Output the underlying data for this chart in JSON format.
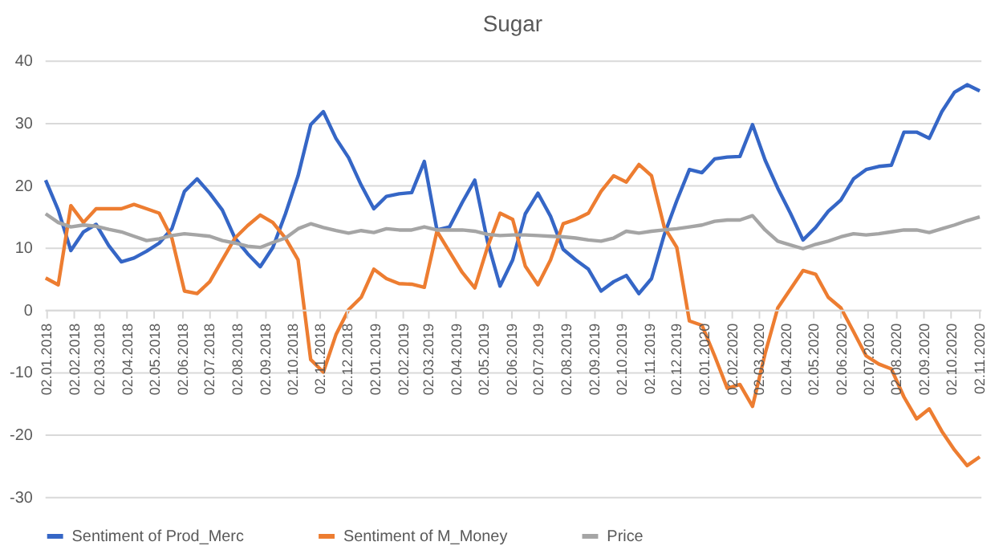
{
  "chart_data": {
    "type": "line",
    "title": "Sugar",
    "x": [
      "2018-01-02",
      "2018-01-16",
      "2018-01-30",
      "2018-02-13",
      "2018-02-27",
      "2018-03-13",
      "2018-03-27",
      "2018-04-10",
      "2018-04-24",
      "2018-05-08",
      "2018-05-22",
      "2018-06-05",
      "2018-06-19",
      "2018-07-03",
      "2018-07-17",
      "2018-07-31",
      "2018-08-14",
      "2018-08-28",
      "2018-09-11",
      "2018-09-25",
      "2018-10-09",
      "2018-10-23",
      "2018-11-06",
      "2018-11-20",
      "2018-12-04",
      "2018-12-18",
      "2019-01-01",
      "2019-01-15",
      "2019-01-29",
      "2019-02-12",
      "2019-02-26",
      "2019-03-12",
      "2019-03-26",
      "2019-04-09",
      "2019-04-23",
      "2019-05-07",
      "2019-05-21",
      "2019-06-04",
      "2019-06-18",
      "2019-07-02",
      "2019-07-16",
      "2019-07-30",
      "2019-08-13",
      "2019-08-27",
      "2019-09-10",
      "2019-09-24",
      "2019-10-08",
      "2019-10-22",
      "2019-11-05",
      "2019-11-19",
      "2019-12-03",
      "2019-12-17",
      "2019-12-31",
      "2020-01-14",
      "2020-01-28",
      "2020-02-11",
      "2020-02-25",
      "2020-03-10",
      "2020-03-24",
      "2020-04-07",
      "2020-04-21",
      "2020-05-05",
      "2020-05-19",
      "2020-06-02",
      "2020-06-16",
      "2020-06-30",
      "2020-07-14",
      "2020-07-28",
      "2020-08-11",
      "2020-08-25",
      "2020-09-08",
      "2020-09-22",
      "2020-10-06",
      "2020-10-20",
      "2020-11-03"
    ],
    "series": [
      {
        "name": "Sentiment of Prod_Merc",
        "color": "#3566c6",
        "values": [
          20.8,
          16,
          9.5,
          12.5,
          13.7,
          10.3,
          7.7,
          8.3,
          9.4,
          10.7,
          13,
          19,
          21,
          18.7,
          16,
          11.5,
          9,
          6.9,
          10,
          15.4,
          21.5,
          29.7,
          31.8,
          27.5,
          24.4,
          20,
          16.2,
          18.2,
          18.6,
          18.8,
          23.8,
          12.8,
          13.3,
          17.2,
          20.8,
          11,
          3.8,
          8,
          15.4,
          18.7,
          15,
          9.7,
          8,
          6.5,
          3,
          4.5,
          5.5,
          2.6,
          5,
          12,
          17.5,
          22.5,
          22,
          24.2,
          24.5,
          24.6,
          29.7,
          24,
          19.5,
          15.5,
          11.2,
          13.2,
          15.8,
          17.6,
          21,
          22.5,
          23,
          23.2,
          28.5,
          28.5,
          27.5,
          31.8,
          34.9,
          36.1,
          35.1
        ]
      },
      {
        "name": "Sentiment of M_Money",
        "color": "#ed7d31",
        "values": [
          5.1,
          4,
          16.7,
          14,
          16.2,
          16.2,
          16.2,
          16.9,
          16.2,
          15.5,
          11.5,
          3,
          2.6,
          4.5,
          8,
          11.5,
          13.5,
          15.2,
          14,
          11.5,
          8,
          -8,
          -10,
          -4,
          0,
          2,
          6.5,
          5,
          4.2,
          4.1,
          3.6,
          12.6,
          9.3,
          6,
          3.5,
          10,
          15.5,
          14.5,
          7,
          4,
          8,
          13.8,
          14.5,
          15.5,
          19,
          21.5,
          20.5,
          23.3,
          21.5,
          13.3,
          10,
          -1.8,
          -2.5,
          -7.4,
          -12.6,
          -12,
          -15.5,
          -7,
          0.3,
          3.3,
          6.3,
          5.7,
          2,
          0.3,
          -3.5,
          -7.4,
          -8.7,
          -9.5,
          -14,
          -17.5,
          -15.9,
          -19.5,
          -22.5,
          -25,
          -23.6
        ]
      },
      {
        "name": "Price",
        "color": "#a5a5a5",
        "values": [
          15.4,
          14,
          13.3,
          13.6,
          13.4,
          12.9,
          12.5,
          11.8,
          11.1,
          11.4,
          11.9,
          12.2,
          12,
          11.8,
          11.1,
          10.7,
          10.2,
          10,
          10.8,
          11.5,
          13,
          13.8,
          13.2,
          12.7,
          12.3,
          12.7,
          12.4,
          13,
          12.8,
          12.8,
          13.3,
          12.8,
          12.8,
          12.8,
          12.6,
          12.1,
          11.9,
          12,
          12,
          11.9,
          11.8,
          11.7,
          11.5,
          11.2,
          11,
          11.5,
          12.6,
          12.3,
          12.6,
          12.8,
          13,
          13.3,
          13.6,
          14.2,
          14.4,
          14.4,
          15.1,
          12.8,
          11,
          10.4,
          9.8,
          10.5,
          11,
          11.7,
          12.2,
          12,
          12.2,
          12.5,
          12.8,
          12.8,
          12.4,
          13,
          13.6,
          14.3,
          14.9
        ]
      }
    ],
    "xlim": [
      "2018-01-01",
      "2020-11-04"
    ],
    "xticks": [
      {
        "value": "2018-01-02",
        "label": "02.01.2018"
      },
      {
        "value": "2018-02-02",
        "label": "02.02.2018"
      },
      {
        "value": "2018-03-02",
        "label": "02.03.2018"
      },
      {
        "value": "2018-04-02",
        "label": "02.04.2018"
      },
      {
        "value": "2018-05-02",
        "label": "02.05.2018"
      },
      {
        "value": "2018-06-02",
        "label": "02.06.2018"
      },
      {
        "value": "2018-07-02",
        "label": "02.07.2018"
      },
      {
        "value": "2018-08-02",
        "label": "02.08.2018"
      },
      {
        "value": "2018-09-02",
        "label": "02.09.2018"
      },
      {
        "value": "2018-10-02",
        "label": "02.10.2018"
      },
      {
        "value": "2018-11-02",
        "label": "02.11.2018"
      },
      {
        "value": "2018-12-02",
        "label": "02.12.2018"
      },
      {
        "value": "2019-01-02",
        "label": "02.01.2019"
      },
      {
        "value": "2019-02-02",
        "label": "02.02.2019"
      },
      {
        "value": "2019-03-02",
        "label": "02.03.2019"
      },
      {
        "value": "2019-04-02",
        "label": "02.04.2019"
      },
      {
        "value": "2019-05-02",
        "label": "02.05.2019"
      },
      {
        "value": "2019-06-02",
        "label": "02.06.2019"
      },
      {
        "value": "2019-07-02",
        "label": "02.07.2019"
      },
      {
        "value": "2019-08-02",
        "label": "02.08.2019"
      },
      {
        "value": "2019-09-02",
        "label": "02.09.2019"
      },
      {
        "value": "2019-10-02",
        "label": "02.10.2019"
      },
      {
        "value": "2019-11-02",
        "label": "02.11.2019"
      },
      {
        "value": "2019-12-02",
        "label": "02.12.2019"
      },
      {
        "value": "2020-01-02",
        "label": "02.01.2020"
      },
      {
        "value": "2020-02-02",
        "label": "02.02.2020"
      },
      {
        "value": "2020-03-02",
        "label": "02.03.2020"
      },
      {
        "value": "2020-04-02",
        "label": "02.04.2020"
      },
      {
        "value": "2020-05-02",
        "label": "02.05.2020"
      },
      {
        "value": "2020-06-02",
        "label": "02.06.2020"
      },
      {
        "value": "2020-07-02",
        "label": "02.07.2020"
      },
      {
        "value": "2020-08-02",
        "label": "02.08.2020"
      },
      {
        "value": "2020-09-02",
        "label": "02.09.2020"
      },
      {
        "value": "2020-10-02",
        "label": "02.10.2020"
      },
      {
        "value": "2020-11-02",
        "label": "02.11.2020"
      }
    ],
    "ylim": [
      -30,
      40
    ],
    "yticks": [
      -30,
      -20,
      -10,
      0,
      10,
      20,
      30,
      40
    ],
    "grid": "y",
    "legend": "bottom",
    "marker": "none",
    "line_style": "solid"
  }
}
